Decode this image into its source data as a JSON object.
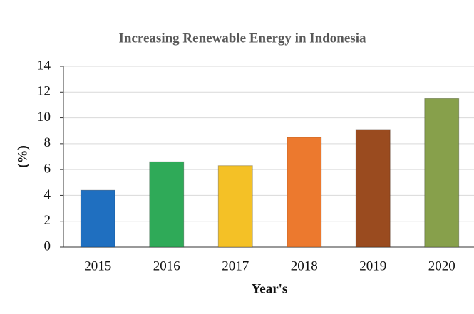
{
  "chart_data": {
    "type": "bar",
    "title": "Increasing Renewable Energy in Indonesia",
    "x_label": "Year's",
    "y_label": "(%)",
    "categories": [
      "2015",
      "2016",
      "2017",
      "2018",
      "2019",
      "2020"
    ],
    "values": [
      4.4,
      6.6,
      6.3,
      8.5,
      9.1,
      11.5
    ],
    "colors": [
      "#1f6fc0",
      "#2faa58",
      "#f4c126",
      "#ec792e",
      "#9a4b1f",
      "#87a04b"
    ],
    "ylim": [
      0,
      14
    ],
    "yticks": [
      0,
      2,
      4,
      6,
      8,
      10,
      12,
      14
    ],
    "grid": true
  }
}
